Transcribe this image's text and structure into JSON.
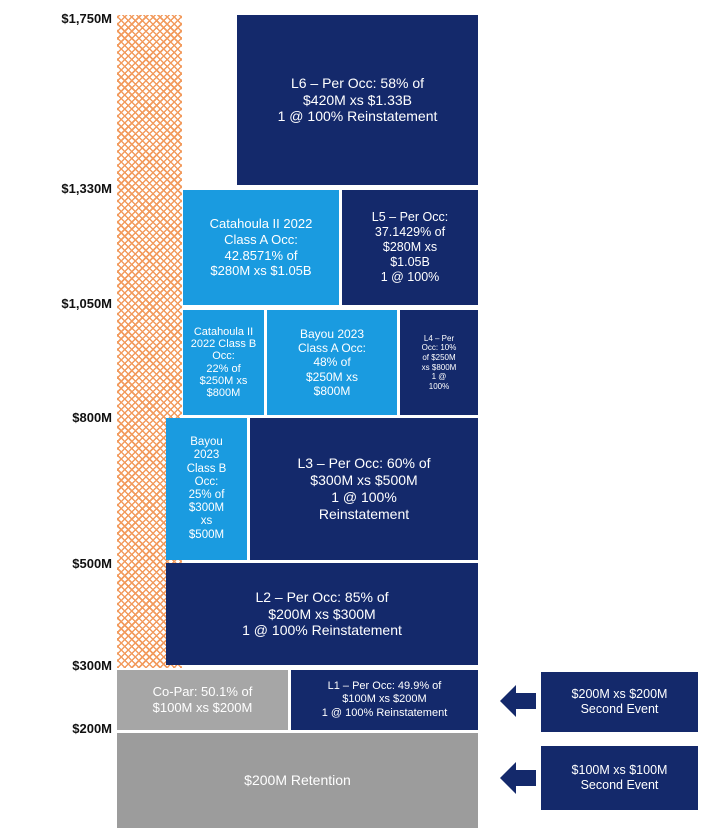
{
  "axis_labels": [
    "$1,750M",
    "$1,330M",
    "$1,050M",
    "$800M",
    "$500M",
    "$300M",
    "$200M"
  ],
  "blocks": [
    {
      "lines": [
        "L6 – Per Occ: 58% of",
        "$420M xs $1.33B",
        "1 @ 100% Reinstatement"
      ]
    },
    {
      "lines": [
        "Catahoula II 2022",
        "Class A Occ:",
        "42.8571% of",
        "$280M xs $1.05B"
      ]
    },
    {
      "lines": [
        "L5 – Per Occ:",
        "37.1429% of",
        "$280M xs",
        "$1.05B",
        "1 @ 100%"
      ]
    },
    {
      "lines": [
        "Catahoula II",
        "2022 Class B",
        "Occ:",
        "22% of",
        "$250M xs",
        "$800M"
      ]
    },
    {
      "lines": [
        "Bayou 2023",
        "Class A Occ:",
        "48% of",
        "$250M xs",
        "$800M"
      ]
    },
    {
      "lines": [
        "L4 – Per",
        "Occ: 10%",
        "of $250M",
        "xs $800M",
        "1 @",
        "100%"
      ]
    },
    {
      "lines": [
        "Bayou",
        "2023",
        "Class B",
        "Occ:",
        "25% of",
        "$300M",
        "xs",
        "$500M"
      ]
    },
    {
      "lines": [
        "L3 – Per Occ: 60% of",
        "$300M xs $500M",
        "1 @ 100%",
        "Reinstatement"
      ]
    },
    {
      "lines": [
        "L2 – Per Occ: 85% of",
        "$200M xs $300M",
        "1 @ 100% Reinstatement"
      ]
    },
    {
      "lines": [
        "Co-Par: 50.1% of",
        "$100M xs $200M"
      ]
    },
    {
      "lines": [
        "L1 – Per Occ: 49.9% of",
        "$100M xs $200M",
        "1 @ 100% Reinstatement"
      ]
    },
    {
      "lines": [
        "$200M Retention"
      ]
    }
  ],
  "callouts": [
    {
      "lines": [
        "$200M xs $200M",
        "Second Event"
      ]
    },
    {
      "lines": [
        "$100M xs $100M",
        "Second Event"
      ]
    }
  ]
}
